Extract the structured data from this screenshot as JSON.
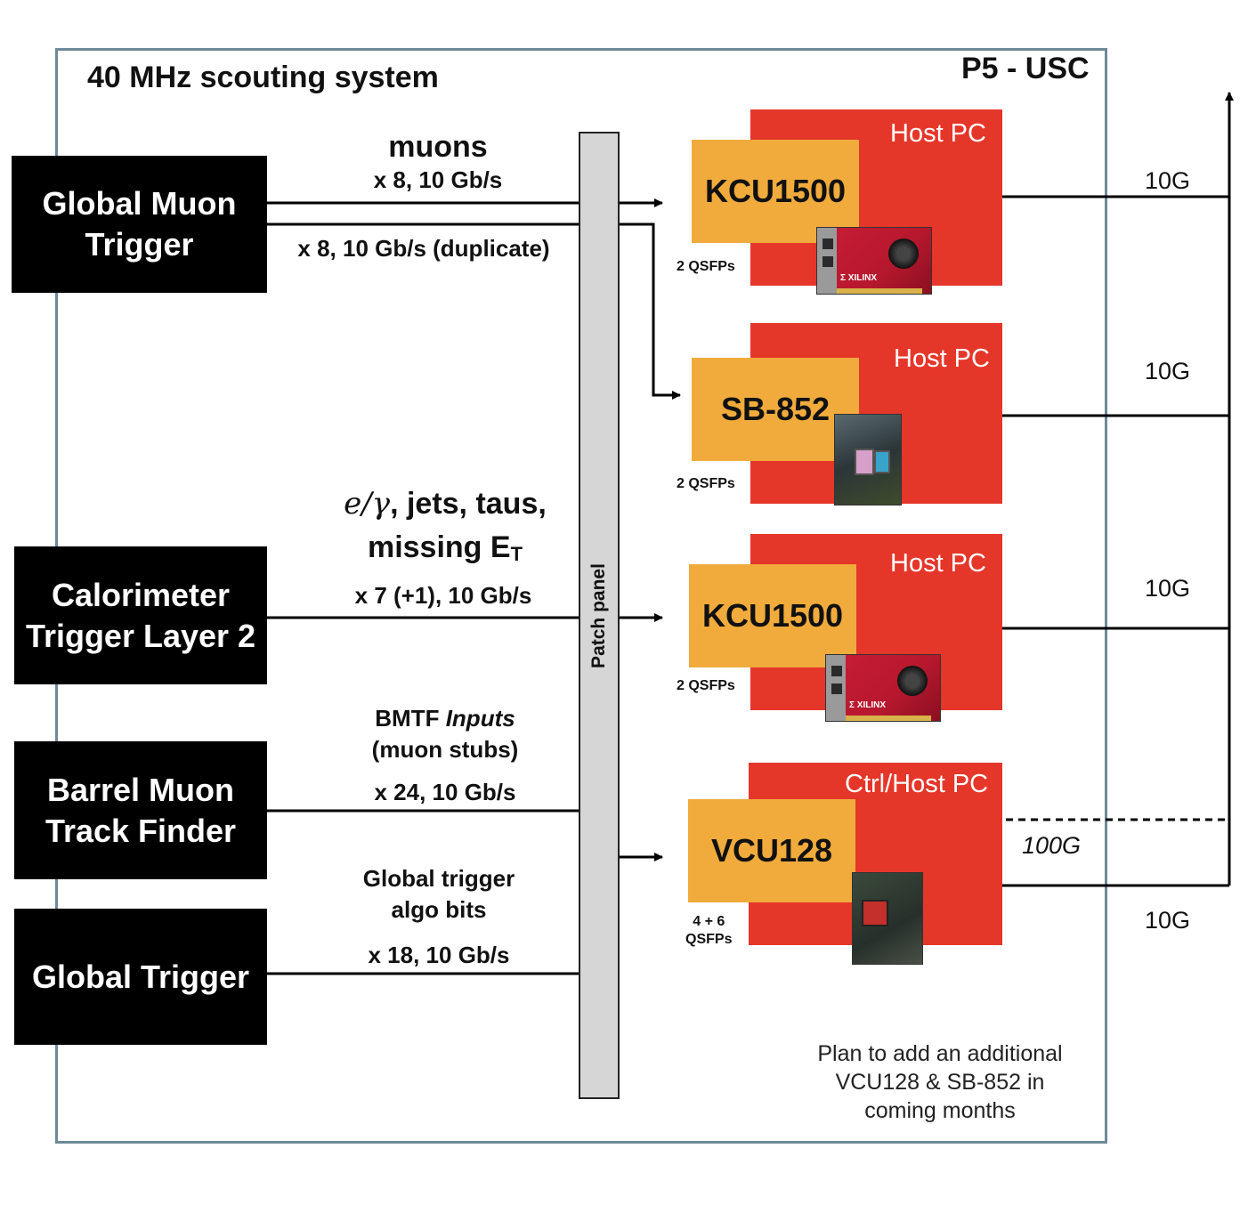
{
  "header": {
    "system_title": "40 MHz scouting system",
    "location": "P5 - USC"
  },
  "sources": {
    "gmt": {
      "line1": "Global Muon",
      "line2": "Trigger"
    },
    "calo": {
      "line1": "Calorimeter",
      "line2": "Trigger Layer 2"
    },
    "bmtf": {
      "line1": "Barrel Muon",
      "line2": "Track Finder"
    },
    "gt": {
      "line1": "Global Trigger"
    }
  },
  "links": {
    "muons": {
      "title": "muons",
      "rate": "x 8, 10 Gb/s",
      "duplicate": "x 8, 10 Gb/s (duplicate)"
    },
    "calo": {
      "title_math": "e/γ",
      "title_rest": ", jets, taus,",
      "title2_main": "missing E",
      "title2_sub": "T",
      "rate": "x 7 (+1), 10 Gb/s"
    },
    "bmtf": {
      "title_prefix": "BMTF ",
      "title_italic": "Inputs",
      "title2": "(muon stubs)",
      "rate": "x 24, 10 Gb/s"
    },
    "gt": {
      "title1": "Global trigger",
      "title2": "algo bits",
      "rate": "x 18, 10 Gb/s"
    }
  },
  "patch_panel": {
    "label": "Patch panel"
  },
  "hosts": [
    {
      "host_label": "Host PC",
      "board": "KCU1500",
      "qsfp": "2 QSFPs",
      "uplink": "10G"
    },
    {
      "host_label": "Host PC",
      "board": "SB-852",
      "qsfp": "2 QSFPs",
      "uplink": "10G"
    },
    {
      "host_label": "Host PC",
      "board": "KCU1500",
      "qsfp": "2 QSFPs",
      "uplink": "10G"
    },
    {
      "host_label": "Ctrl/Host PC",
      "board": "VCU128",
      "qsfp_line1": "4 + 6",
      "qsfp_line2": "QSFPs",
      "uplink": "10G",
      "fast_link": "100G"
    }
  ],
  "photos": {
    "xilinx_brand": "Σ XILINX"
  },
  "note": {
    "line1": "Plan to add an additional",
    "line2": "VCU128 & SB-852 in",
    "line3": "coming months"
  },
  "colors": {
    "host": "#e5362a",
    "board": "#f0ab3c",
    "frame": "#6f8a99",
    "patch": "#d6d6d6"
  }
}
